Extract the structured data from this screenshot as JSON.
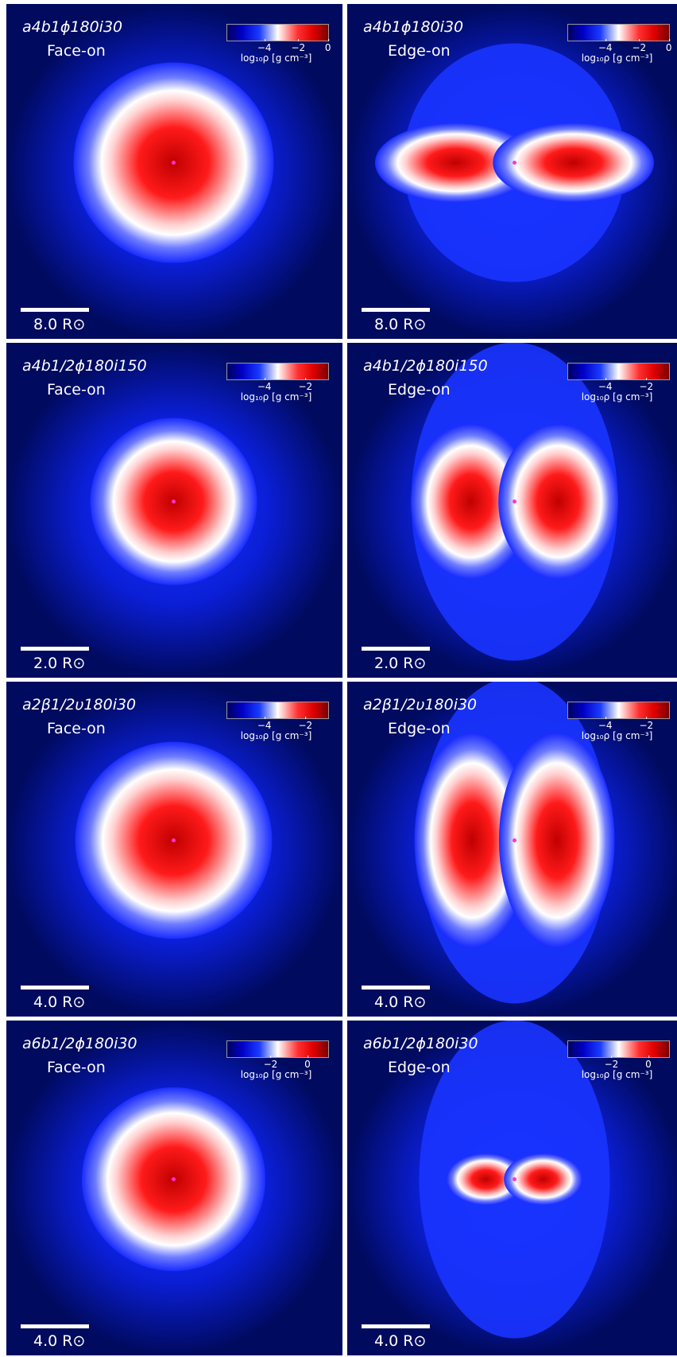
{
  "panels": [
    {
      "model": "a4b1ϕ180i30",
      "view": "Face-on",
      "ticks": [
        "−4",
        "−2",
        "0"
      ],
      "colorbar_label": "log₁₀ρ [g cm⁻³]",
      "scale": "8.0 R⊙",
      "orientation": "face",
      "scale_length": 8.0
    },
    {
      "model": "a4b1ϕ180i30",
      "view": "Edge-on",
      "ticks": [
        "−4",
        "−2",
        "0"
      ],
      "colorbar_label": "log₁₀ρ [g cm⁻³]",
      "scale": "8.0 R⊙",
      "orientation": "edge",
      "scale_length": 8.0
    },
    {
      "model": "a4b1/2ϕ180i150",
      "view": "Face-on",
      "ticks": [
        "−4",
        "−2"
      ],
      "colorbar_label": "log₁₀ρ [g cm⁻³]",
      "scale": "2.0 R⊙",
      "orientation": "face",
      "scale_length": 2.0
    },
    {
      "model": "a4b1/2ϕ180i150",
      "view": "Edge-on",
      "ticks": [
        "−4",
        "−2"
      ],
      "colorbar_label": "log₁₀ρ [g cm⁻³]",
      "scale": "2.0 R⊙",
      "orientation": "edge",
      "scale_length": 2.0
    },
    {
      "model": "a2β1/2υ180i30",
      "view": "Face-on",
      "ticks": [
        "−4",
        "−2"
      ],
      "colorbar_label": "log₁₀ρ [g cm⁻³]",
      "scale": "4.0 R⊙",
      "orientation": "face",
      "scale_length": 4.0
    },
    {
      "model": "a2β1/2υ180i30",
      "view": "Edge-on",
      "ticks": [
        "−4",
        "−2"
      ],
      "colorbar_label": "log₁₀ρ [g cm⁻³]",
      "scale": "4.0 R⊙",
      "orientation": "edge",
      "scale_length": 4.0
    },
    {
      "model": "a6b1/2ϕ180i30",
      "view": "Face-on",
      "ticks": [
        "−2",
        "0"
      ],
      "colorbar_label": "log₁₀ρ [g cm⁻³]",
      "scale": "4.0 R⊙",
      "orientation": "face",
      "scale_length": 4.0
    },
    {
      "model": "a6b1/2ϕ180i30",
      "view": "Edge-on",
      "ticks": [
        "−2",
        "0"
      ],
      "colorbar_label": "log₁₀ρ [g cm⁻³]",
      "scale": "4.0 R⊙",
      "orientation": "edge",
      "scale_length": 4.0
    }
  ],
  "colors": {
    "background": "#000a5e",
    "low": "#0a1aff",
    "mid": "#ffffff",
    "high": "#e00000",
    "center_marker": "#ff33cc"
  }
}
